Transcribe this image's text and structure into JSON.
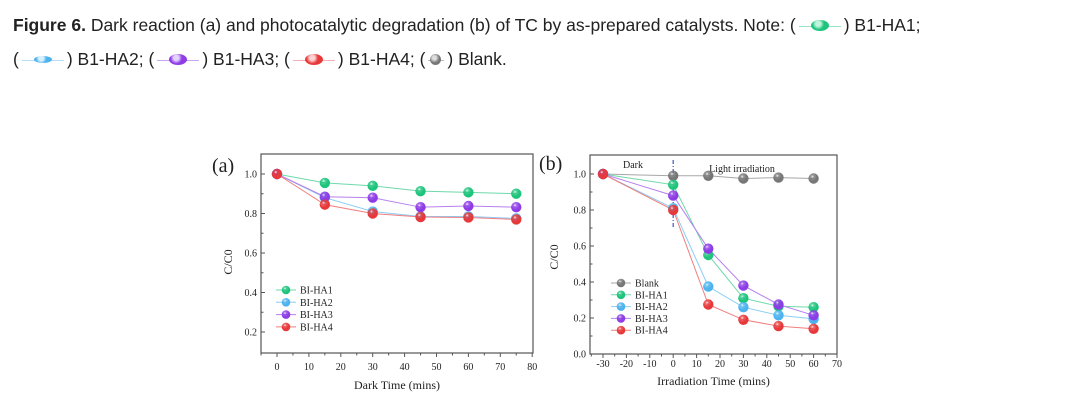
{
  "caption": {
    "label": "Figure 6.",
    "text_1": "Dark reaction (a) and photocatalytic degradation (b) of TC by as-prepared catalysts. Note: (",
    "item_1": ") B1-HA1;",
    "open_2": "(",
    "item_2": ") B1-HA2; (",
    "item_3": ") B1-HA3; (",
    "item_4": ") B1-HA4; (",
    "item_5": ") Blank."
  },
  "colors": {
    "HA1": "#1fc47c",
    "HA2": "#4db3ee",
    "HA3": "#8e3ce6",
    "HA4": "#e8393a",
    "Blank": "#777777"
  },
  "chart_data": [
    {
      "type": "line",
      "panel_label": "(a)",
      "title": "",
      "xlabel": "Dark Time (mins)",
      "ylabel": "C/C0",
      "xlim": [
        -5,
        80
      ],
      "ylim": [
        0.1,
        1.1
      ],
      "xticks": [
        0,
        10,
        20,
        30,
        40,
        50,
        60,
        70,
        80
      ],
      "yticks": [
        0.2,
        0.4,
        0.6,
        0.8,
        1.0
      ],
      "ytick_labels": [
        "0.2",
        "0.4",
        "0.6",
        "0.8",
        "1.0"
      ],
      "legend_position": "lower-left",
      "x": [
        0,
        15,
        30,
        45,
        60,
        75
      ],
      "series": [
        {
          "name": "BI-HA1",
          "key": "HA1",
          "values": [
            1.0,
            0.955,
            0.94,
            0.913,
            0.907,
            0.9
          ]
        },
        {
          "name": "BI-HA2",
          "key": "HA2",
          "values": [
            1.0,
            0.88,
            0.81,
            0.785,
            0.785,
            0.775
          ]
        },
        {
          "name": "BI-HA3",
          "key": "HA3",
          "values": [
            1.0,
            0.885,
            0.88,
            0.832,
            0.838,
            0.832
          ]
        },
        {
          "name": "BI-HA4",
          "key": "HA4",
          "values": [
            1.0,
            0.845,
            0.8,
            0.782,
            0.78,
            0.77
          ]
        }
      ]
    },
    {
      "type": "line",
      "panel_label": "(b)",
      "title": "",
      "xlabel": "Irradiation Time (mins)",
      "ylabel": "C/C0",
      "xlim": [
        -35,
        70
      ],
      "ylim": [
        0.0,
        1.1
      ],
      "xticks": [
        -30,
        -20,
        -10,
        0,
        10,
        20,
        30,
        40,
        50,
        60,
        70
      ],
      "yticks": [
        0.0,
        0.2,
        0.4,
        0.6,
        0.8,
        1.0
      ],
      "ytick_labels": [
        "0.0",
        "0.2",
        "0.4",
        "0.6",
        "0.8",
        "1.0"
      ],
      "legend_position": "lower-left",
      "annotations": [
        "Dark",
        "Light irradiation"
      ],
      "divider_x": 0,
      "x": [
        -30,
        0,
        15,
        30,
        45,
        60
      ],
      "series": [
        {
          "name": "Blank",
          "key": "Blank",
          "values": [
            1.0,
            0.99,
            0.99,
            0.975,
            0.98,
            0.975
          ]
        },
        {
          "name": "BI-HA1",
          "key": "HA1",
          "values": [
            1.0,
            0.94,
            0.55,
            0.31,
            0.265,
            0.26
          ]
        },
        {
          "name": "BI-HA2",
          "key": "HA2",
          "values": [
            1.0,
            0.81,
            0.375,
            0.26,
            0.215,
            0.195
          ]
        },
        {
          "name": "BI-HA3",
          "key": "HA3",
          "values": [
            1.0,
            0.88,
            0.585,
            0.38,
            0.275,
            0.215
          ]
        },
        {
          "name": "BI-HA4",
          "key": "HA4",
          "values": [
            1.0,
            0.8,
            0.275,
            0.19,
            0.155,
            0.14
          ]
        }
      ]
    }
  ]
}
